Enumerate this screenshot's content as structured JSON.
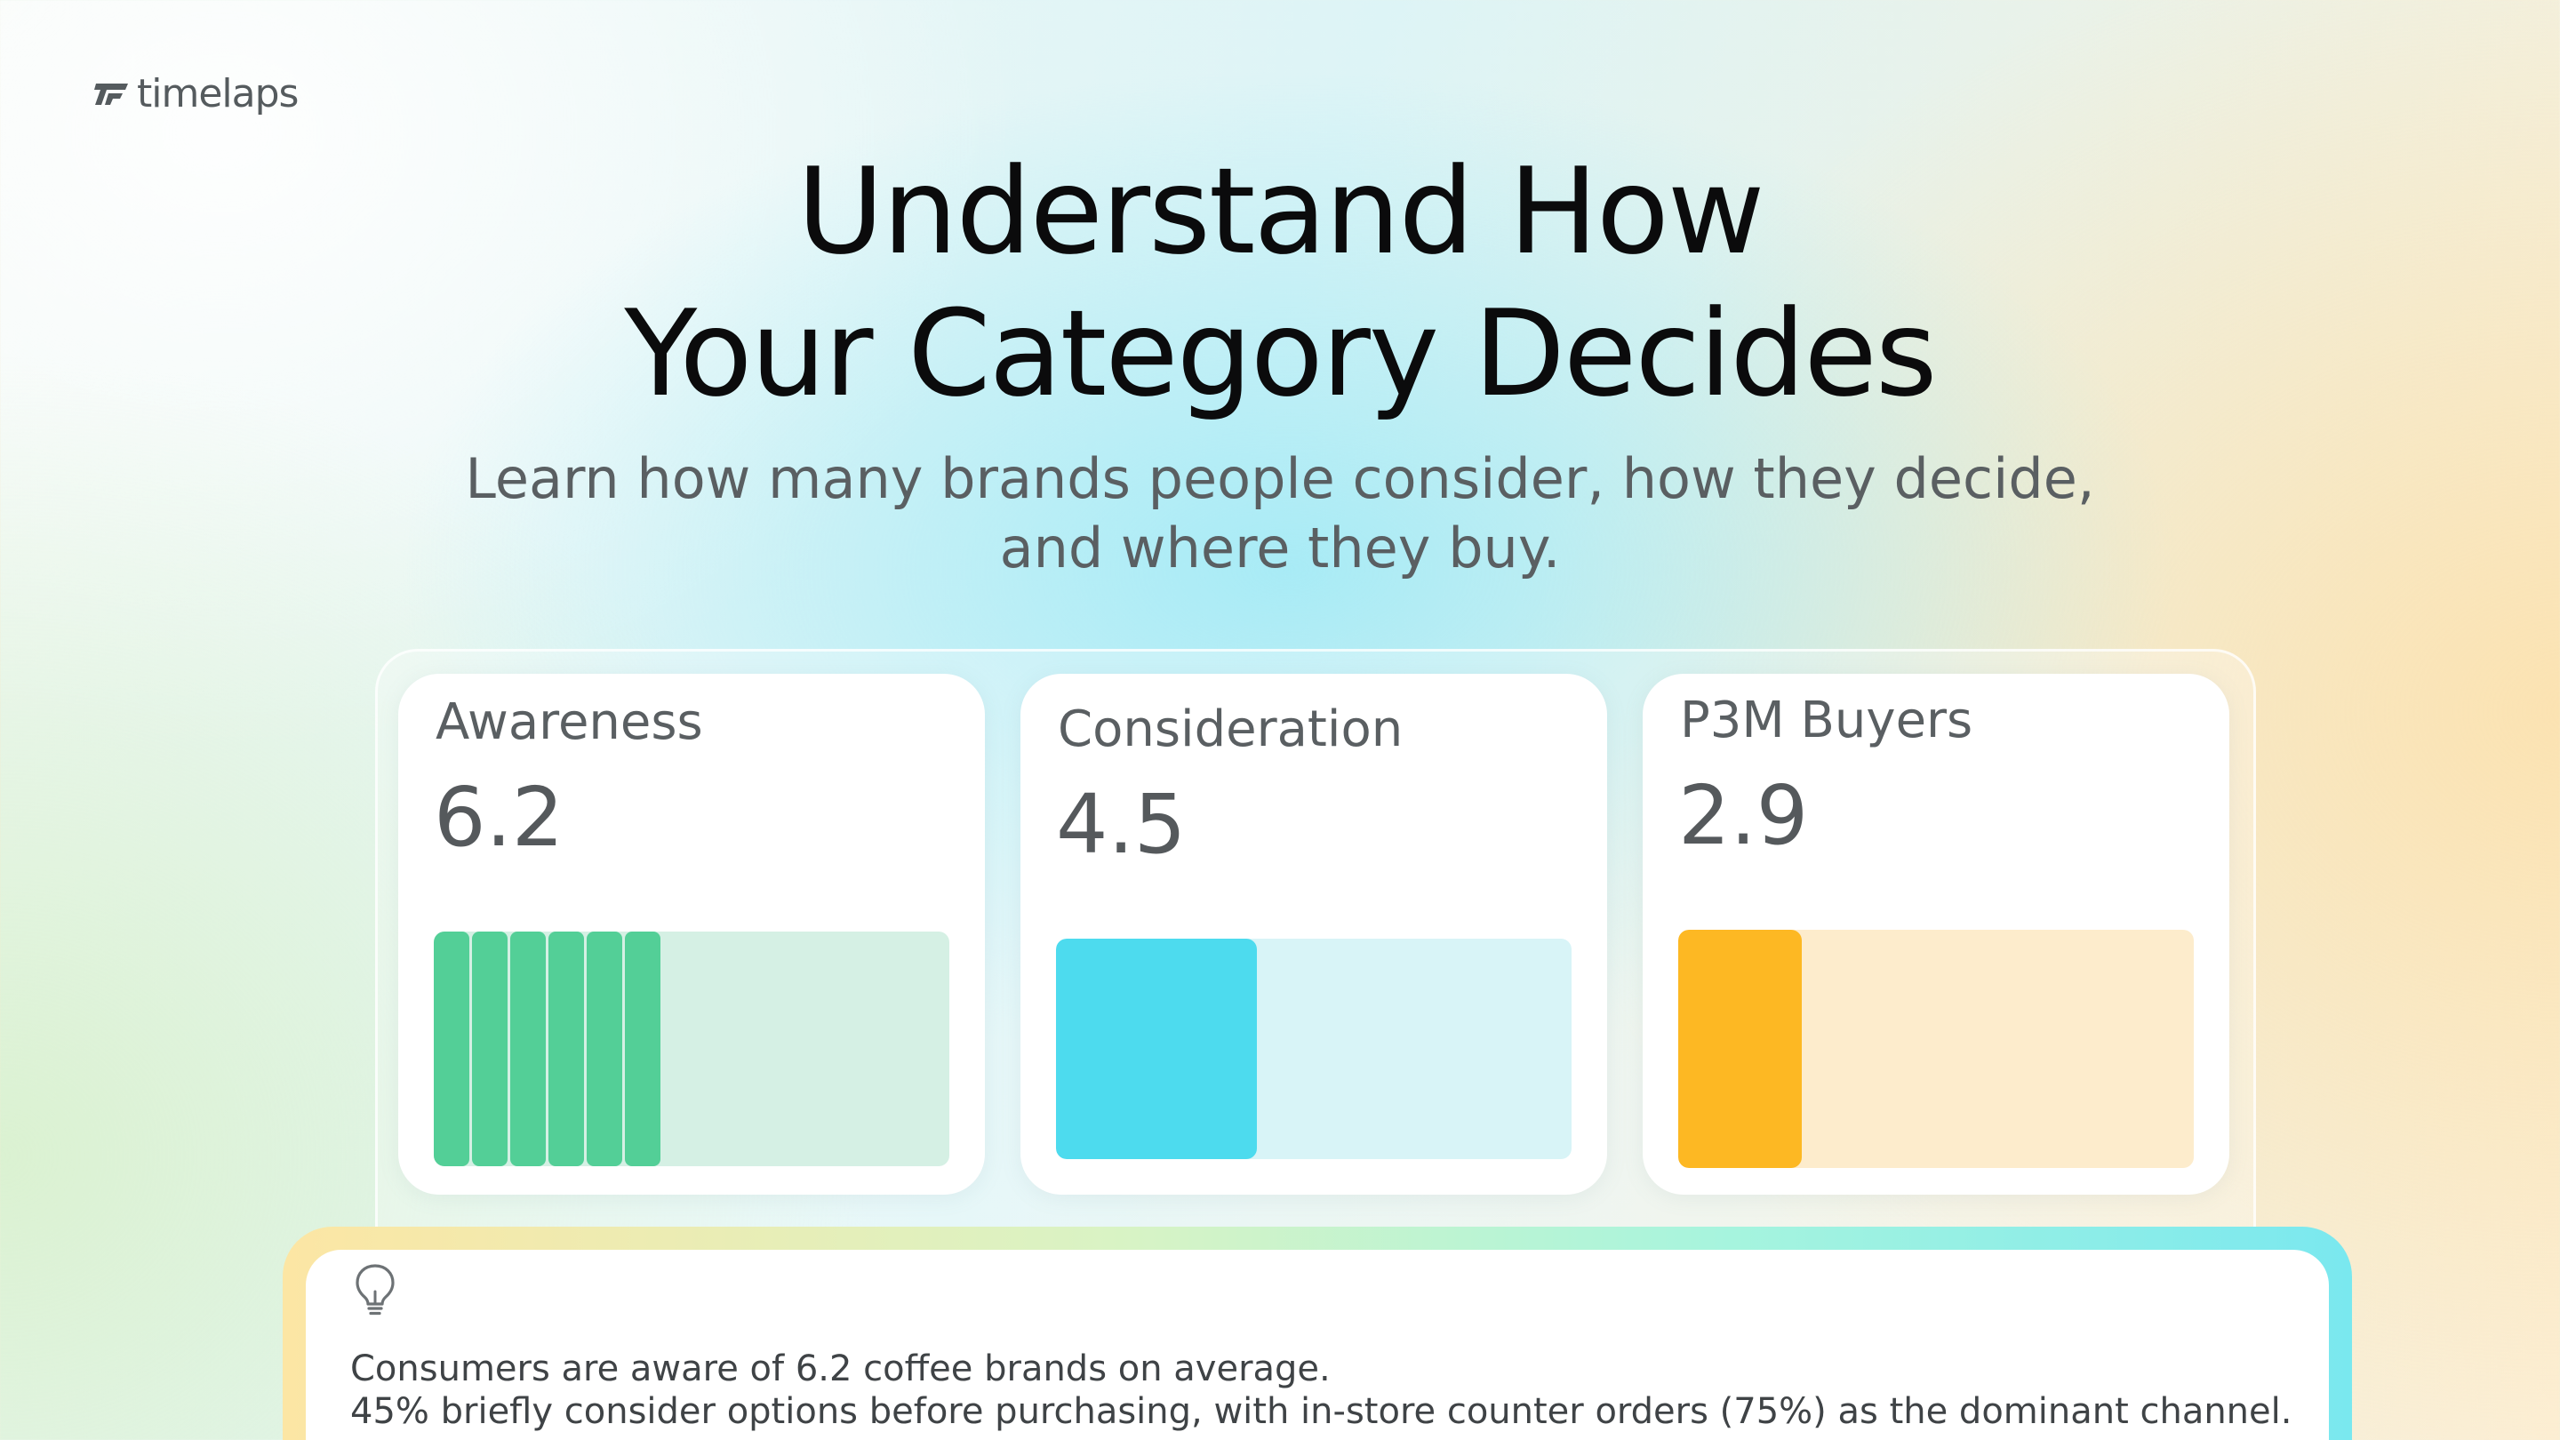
{
  "brand": {
    "name": "timelaps",
    "logo_icon": "timelaps-logo-icon"
  },
  "hero": {
    "title_line1": "Understand How",
    "title_line2": "Your Category Decides",
    "subtitle_line1": "Learn how many brands people consider, how they decide,",
    "subtitle_line2": "and where they buy."
  },
  "metrics": [
    {
      "label": "Awareness",
      "value": "6.2",
      "bar_fraction": 0.44,
      "segments": 6,
      "color": "#53cf97",
      "track_color": "#d5f0e4"
    },
    {
      "label": "Consideration",
      "value": "4.5",
      "bar_fraction": 0.39,
      "color": "#4ddbee",
      "track_color": "#d8f4f7"
    },
    {
      "label": "P3M Buyers",
      "value": "2.9",
      "bar_fraction": 0.24,
      "color": "#fdb823",
      "track_color": "#fdeccc"
    }
  ],
  "insight": {
    "icon": "lightbulb-icon",
    "line1": "Consumers are aware of 6.2 coffee brands on average.",
    "line2": "45% briefly consider options before purchasing, with in-store counter orders (75%) as the dominant channel."
  }
}
